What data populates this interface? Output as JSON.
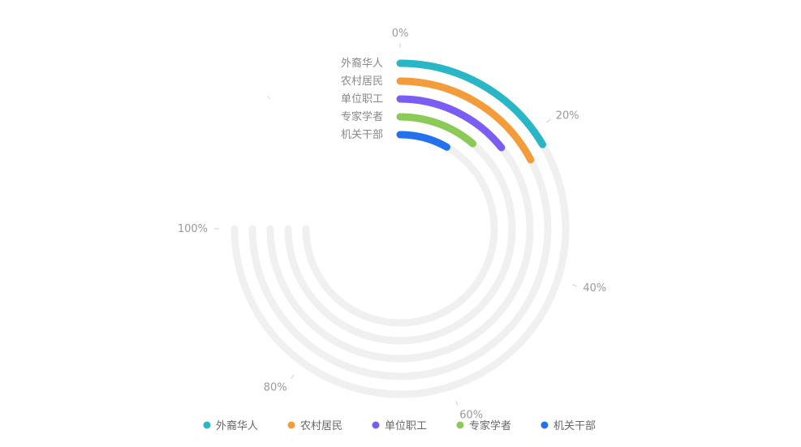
{
  "chart_data": {
    "type": "radial-bar",
    "title": "",
    "axis": {
      "min": 0,
      "max": 100,
      "unit": "%",
      "sweep_degrees": 270,
      "start_angle": "top",
      "direction": "clockwise",
      "ticks": [
        {
          "value": 0,
          "label": "0%"
        },
        {
          "value": 20,
          "label": "20%"
        },
        {
          "value": 40,
          "label": "40%"
        },
        {
          "value": 60,
          "label": "60%"
        },
        {
          "value": 80,
          "label": "80%"
        },
        {
          "value": 100,
          "label": "100%"
        }
      ]
    },
    "series": [
      {
        "name": "外裔华人",
        "value": 22,
        "color": "#29b6c6"
      },
      {
        "name": "农村居民",
        "value": 23,
        "color": "#f59c3a"
      },
      {
        "name": "单位职工",
        "value": 19,
        "color": "#7b5cf5"
      },
      {
        "name": "专家学者",
        "value": 15,
        "color": "#8cca58"
      },
      {
        "name": "机关干部",
        "value": 11,
        "color": "#2272f0"
      }
    ],
    "track_color": "#f0f0f0",
    "legend": {
      "position": "bottom"
    },
    "colors": {
      "tick_label": "#9a9a9a",
      "category_label": "#888888",
      "legend_text": "#666666"
    }
  }
}
